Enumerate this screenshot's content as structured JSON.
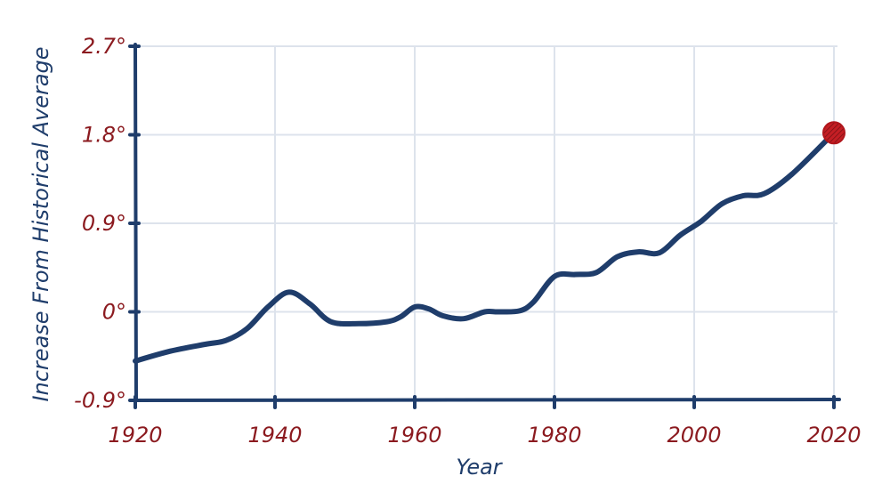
{
  "chart_data": {
    "type": "line",
    "title": "",
    "xlabel": "Year",
    "ylabel": "Increase From Historical Average",
    "xlim": [
      1920,
      2020
    ],
    "ylim": [
      -0.9,
      2.7
    ],
    "x_ticks": [
      1920,
      1940,
      1960,
      1980,
      2000,
      2020
    ],
    "x_tick_labels": [
      "1920",
      "1940",
      "1960",
      "1980",
      "2000",
      "2020"
    ],
    "y_ticks": [
      -0.9,
      0,
      0.9,
      1.8,
      2.7
    ],
    "y_tick_labels": [
      "-0.9°",
      "0°",
      "0.9°",
      "1.8°",
      "2.7°"
    ],
    "grid": true,
    "colors": {
      "line": "#1f3d6b",
      "ticks": "#8b1a1f",
      "marker": "#b0161c",
      "grid": "#dde3ec"
    },
    "series": [
      {
        "x": [
          1920,
          1925,
          1930,
          1933,
          1936,
          1939,
          1942,
          1945,
          1948,
          1952,
          1956,
          1958,
          1960,
          1962,
          1964,
          1967,
          1970,
          1972,
          1975,
          1977,
          1980,
          1983,
          1986,
          1989,
          1992,
          1995,
          1998,
          2001,
          2004,
          2007,
          2010,
          2014,
          2020
        ],
        "y": [
          -0.5,
          -0.4,
          -0.33,
          -0.29,
          -0.17,
          0.05,
          0.2,
          0.08,
          -0.1,
          -0.12,
          -0.1,
          -0.05,
          0.05,
          0.03,
          -0.04,
          -0.07,
          0.0,
          0.0,
          0.01,
          0.1,
          0.36,
          0.38,
          0.4,
          0.56,
          0.61,
          0.6,
          0.78,
          0.92,
          1.1,
          1.18,
          1.2,
          1.4,
          1.82
        ]
      }
    ],
    "highlight": {
      "x": 2020,
      "y": 1.82
    }
  }
}
